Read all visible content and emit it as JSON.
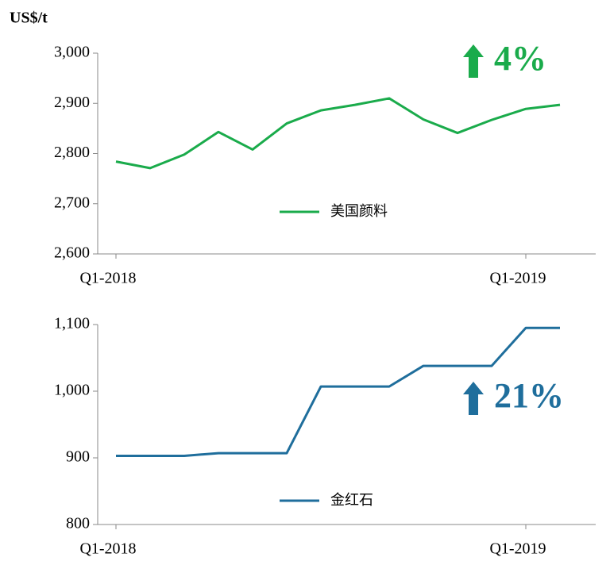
{
  "y_axis_label": "US$/t",
  "chart_data": [
    {
      "type": "line",
      "categories": [
        "Q1-2018",
        null,
        null,
        null,
        null,
        null,
        null,
        null,
        null,
        null,
        null,
        null,
        "Q1-2019",
        null
      ],
      "series": [
        {
          "name": "美国颜料",
          "color": "#1aab4b",
          "values": [
            2784,
            2771,
            2798,
            2843,
            2808,
            2860,
            2886,
            2897,
            2910,
            2868,
            2841,
            2867,
            2889,
            2897
          ]
        }
      ],
      "ylim": [
        2600,
        3000
      ],
      "yticks": [
        {
          "value": 2600,
          "label": "2,600"
        },
        {
          "value": 2700,
          "label": "2,700"
        },
        {
          "value": 2800,
          "label": "2,800"
        },
        {
          "value": 2900,
          "label": "2,900"
        },
        {
          "value": 3000,
          "label": "3,000"
        }
      ],
      "annotation": "4%"
    },
    {
      "type": "line",
      "categories": [
        "Q1-2018",
        null,
        null,
        null,
        null,
        null,
        null,
        null,
        null,
        null,
        null,
        null,
        "Q1-2019",
        null
      ],
      "series": [
        {
          "name": "金红石",
          "color": "#1f6e9c",
          "values": [
            903,
            903,
            903,
            907,
            907,
            907,
            1007,
            1007,
            1007,
            1038,
            1038,
            1038,
            1095,
            1095
          ]
        }
      ],
      "ylim": [
        800,
        1100
      ],
      "yticks": [
        800,
        900,
        {
          "value": 1000,
          "label": "1,000"
        },
        {
          "value": 1100,
          "label": "1,100"
        }
      ],
      "annotation": "21%"
    }
  ]
}
